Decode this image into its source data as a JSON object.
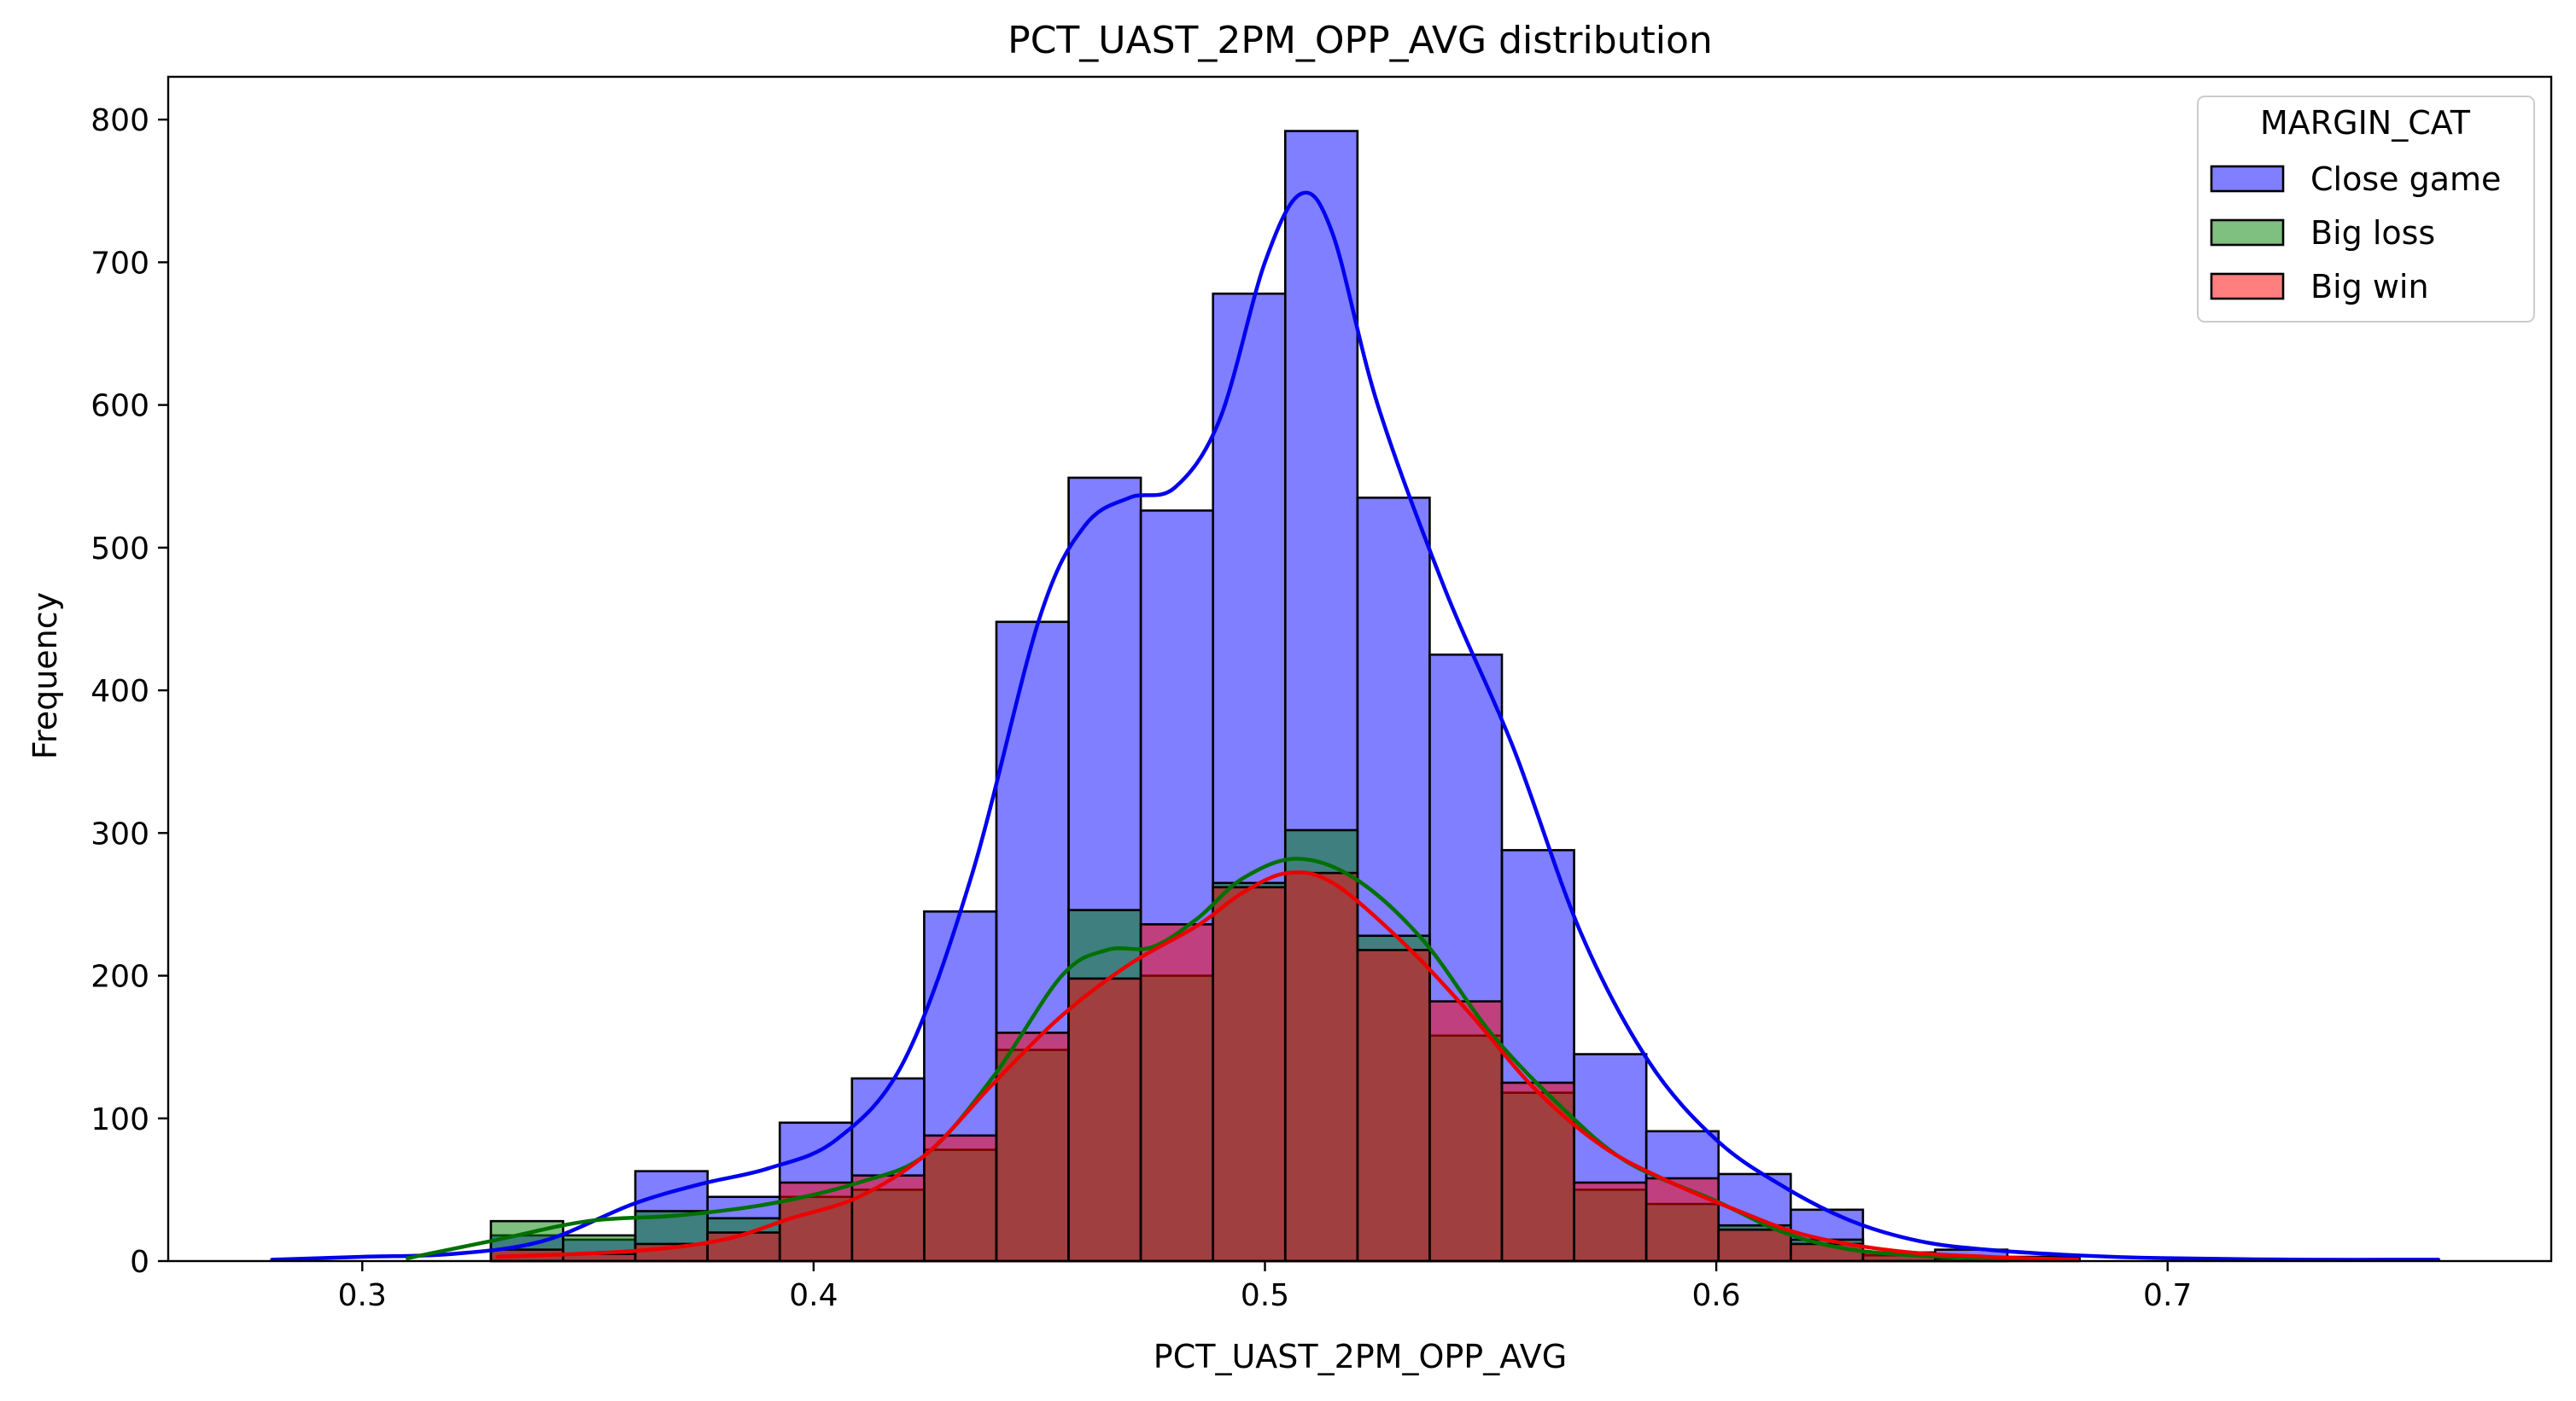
{
  "chart_data": {
    "type": "bar",
    "title": "PCT_UAST_2PM_OPP_AVG distribution",
    "xlabel": "PCT_UAST_2PM_OPP_AVG",
    "ylabel": "Frequency",
    "xlim": [
      0.257,
      0.785
    ],
    "ylim": [
      0,
      830
    ],
    "xticks": [
      0.3,
      0.4,
      0.5,
      0.6,
      0.7
    ],
    "xtick_labels": [
      "0.3",
      "0.4",
      "0.5",
      "0.6",
      "0.7"
    ],
    "yticks": [
      0,
      100,
      200,
      300,
      400,
      500,
      600,
      700,
      800
    ],
    "ytick_labels": [
      "0",
      "100",
      "200",
      "300",
      "400",
      "500",
      "600",
      "700",
      "800"
    ],
    "bin_edges": [
      0.3285,
      0.3445,
      0.3605,
      0.3765,
      0.3925,
      0.4085,
      0.4245,
      0.4405,
      0.4565,
      0.4725,
      0.4885,
      0.5045,
      0.5205,
      0.5365,
      0.5525,
      0.5685,
      0.5845,
      0.6005,
      0.6165,
      0.6325,
      0.6485,
      0.6645,
      0.6805
    ],
    "legend": {
      "title": "MARGIN_CAT",
      "placement": "upper right",
      "entries": [
        "Close game",
        "Big loss",
        "Big win"
      ]
    },
    "series": [
      {
        "name": "Close game",
        "fill": "#0000ff",
        "fill_opacity": 0.5,
        "line_color": "#0000ee",
        "values": [
          18,
          15,
          63,
          45,
          97,
          128,
          245,
          448,
          549,
          526,
          678,
          792,
          535,
          425,
          288,
          145,
          91,
          61,
          36,
          6,
          8,
          3
        ],
        "kde": [
          [
            0.28,
            1
          ],
          [
            0.3,
            3
          ],
          [
            0.32,
            5
          ],
          [
            0.34,
            14
          ],
          [
            0.36,
            40
          ],
          [
            0.375,
            54
          ],
          [
            0.39,
            65
          ],
          [
            0.405,
            85
          ],
          [
            0.42,
            140
          ],
          [
            0.435,
            270
          ],
          [
            0.45,
            450
          ],
          [
            0.46,
            515
          ],
          [
            0.47,
            535
          ],
          [
            0.48,
            542
          ],
          [
            0.49,
            590
          ],
          [
            0.5,
            700
          ],
          [
            0.508,
            748
          ],
          [
            0.515,
            720
          ],
          [
            0.525,
            600
          ],
          [
            0.54,
            470
          ],
          [
            0.555,
            360
          ],
          [
            0.57,
            230
          ],
          [
            0.585,
            140
          ],
          [
            0.6,
            85
          ],
          [
            0.615,
            52
          ],
          [
            0.63,
            28
          ],
          [
            0.645,
            14
          ],
          [
            0.66,
            8
          ],
          [
            0.68,
            4
          ],
          [
            0.7,
            2
          ],
          [
            0.73,
            1
          ],
          [
            0.76,
            1
          ]
        ]
      },
      {
        "name": "Big loss",
        "fill": "#008000",
        "fill_opacity": 0.5,
        "line_color": "#007000",
        "values": [
          28,
          18,
          35,
          30,
          45,
          50,
          78,
          148,
          246,
          200,
          265,
          302,
          228,
          158,
          118,
          50,
          40,
          25,
          15,
          4,
          3,
          0
        ],
        "kde": [
          [
            0.31,
            2
          ],
          [
            0.33,
            15
          ],
          [
            0.35,
            28
          ],
          [
            0.37,
            32
          ],
          [
            0.39,
            40
          ],
          [
            0.41,
            55
          ],
          [
            0.425,
            75
          ],
          [
            0.44,
            130
          ],
          [
            0.455,
            200
          ],
          [
            0.465,
            218
          ],
          [
            0.475,
            220
          ],
          [
            0.485,
            240
          ],
          [
            0.495,
            268
          ],
          [
            0.507,
            282
          ],
          [
            0.52,
            268
          ],
          [
            0.535,
            225
          ],
          [
            0.55,
            160
          ],
          [
            0.565,
            110
          ],
          [
            0.58,
            70
          ],
          [
            0.6,
            42
          ],
          [
            0.615,
            20
          ],
          [
            0.63,
            8
          ],
          [
            0.65,
            3
          ],
          [
            0.67,
            1
          ]
        ]
      },
      {
        "name": "Big win",
        "fill": "#ff0000",
        "fill_opacity": 0.5,
        "line_color": "#ee0000",
        "values": [
          8,
          5,
          12,
          20,
          55,
          60,
          88,
          160,
          198,
          236,
          262,
          272,
          218,
          182,
          125,
          55,
          58,
          22,
          12,
          6,
          2,
          0
        ],
        "kde": [
          [
            0.33,
            3
          ],
          [
            0.36,
            7
          ],
          [
            0.38,
            15
          ],
          [
            0.395,
            30
          ],
          [
            0.41,
            45
          ],
          [
            0.425,
            75
          ],
          [
            0.44,
            125
          ],
          [
            0.455,
            172
          ],
          [
            0.47,
            208
          ],
          [
            0.485,
            235
          ],
          [
            0.495,
            258
          ],
          [
            0.505,
            272
          ],
          [
            0.515,
            265
          ],
          [
            0.53,
            225
          ],
          [
            0.545,
            175
          ],
          [
            0.56,
            120
          ],
          [
            0.575,
            80
          ],
          [
            0.59,
            55
          ],
          [
            0.605,
            35
          ],
          [
            0.62,
            18
          ],
          [
            0.64,
            7
          ],
          [
            0.66,
            3
          ],
          [
            0.68,
            1
          ]
        ]
      }
    ]
  }
}
